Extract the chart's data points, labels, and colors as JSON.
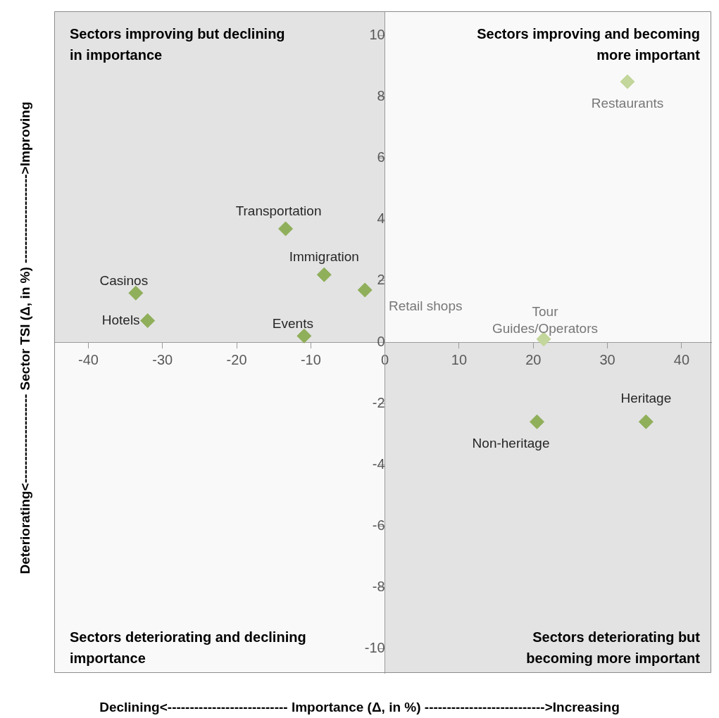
{
  "chart_data": {
    "type": "scatter",
    "xlabel": "Declining<--------------------------- Importance (Δ, in %) --------------------------->Increasing",
    "ylabel": "Deteriorating<-------------------- Sector TSI (Δ, in %) -------------------->Improving",
    "annotations": [
      "Sectors improving but declining in importance",
      "Sectors improving and becoming more important",
      "Sectors deteriorating and declining importance",
      "Sectors deteriorating but becoming more important"
    ],
    "series": [
      {
        "name": "Restaurants",
        "color": "#c3d69b",
        "x": [
          32.7
        ],
        "values": [
          8.5
        ]
      },
      {
        "name": "Transportation",
        "color": "#8faf5a",
        "x": [
          -13.4
        ],
        "values": [
          3.7
        ]
      },
      {
        "name": "Immigration",
        "color": "#8faf5a",
        "x": [
          -8.2
        ],
        "values": [
          2.2
        ]
      },
      {
        "name": "Retail shops",
        "color": "#8faf5a",
        "x": [
          -2.7
        ],
        "values": [
          1.7
        ]
      },
      {
        "name": "Casinos",
        "color": "#8faf5a",
        "x": [
          -33.6
        ],
        "values": [
          1.6
        ]
      },
      {
        "name": "Hotels",
        "color": "#8faf5a",
        "x": [
          -32.0
        ],
        "values": [
          0.7
        ]
      },
      {
        "name": "Events",
        "color": "#8faf5a",
        "x": [
          -10.9
        ],
        "values": [
          0.2
        ]
      },
      {
        "name": "Tour Guides/Operators",
        "color": "#c3d69b",
        "x": [
          21.4
        ],
        "values": [
          0.1
        ]
      },
      {
        "name": "Non-heritage",
        "color": "#8faf5a",
        "x": [
          20.5
        ],
        "values": [
          -2.6
        ]
      },
      {
        "name": "Heritage",
        "color": "#8faf5a",
        "x": [
          35.2
        ],
        "values": [
          -2.6
        ]
      }
    ],
    "xlim": [
      -44.6,
      44
    ],
    "ylim": [
      -10.8,
      10.8
    ],
    "xticks": [
      -40,
      -30,
      -20,
      -10,
      0,
      10,
      20,
      30,
      40
    ],
    "yticks": [
      -10,
      -8,
      -6,
      -4,
      -2,
      0,
      2,
      4,
      6,
      8,
      10
    ],
    "marker": "diamond",
    "grid": false,
    "legend": false
  }
}
